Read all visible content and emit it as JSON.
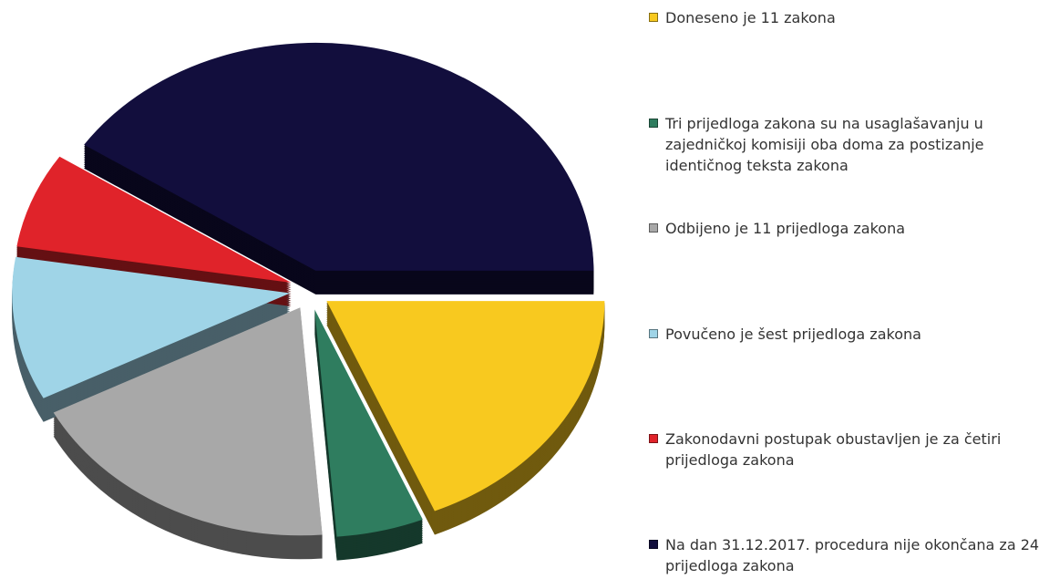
{
  "chart_data": {
    "type": "pie",
    "categories": [
      "Doneseno je 11 zakona",
      "Tri prijedloga zakona su na usaglašavanju u zajedničkoj komisiji oba doma za postizanje identičnog teksta zakona",
      "Odbijeno je 11 prijedloga zakona",
      "Povučeno je šest prijedloga zakona",
      "Zakonodavni postupak obustavljen je za četiri prijedloga zakona",
      "Na dan 31.12.2017. procedura nije okončana za 24 prijedloga zakona"
    ],
    "values": [
      11,
      3,
      11,
      6,
      4,
      24
    ],
    "colors": [
      "#f8c91f",
      "#2f7d5f",
      "#a8a8a8",
      "#9fd4e7",
      "#e0232a",
      "#120e3d"
    ],
    "legend": "right"
  }
}
